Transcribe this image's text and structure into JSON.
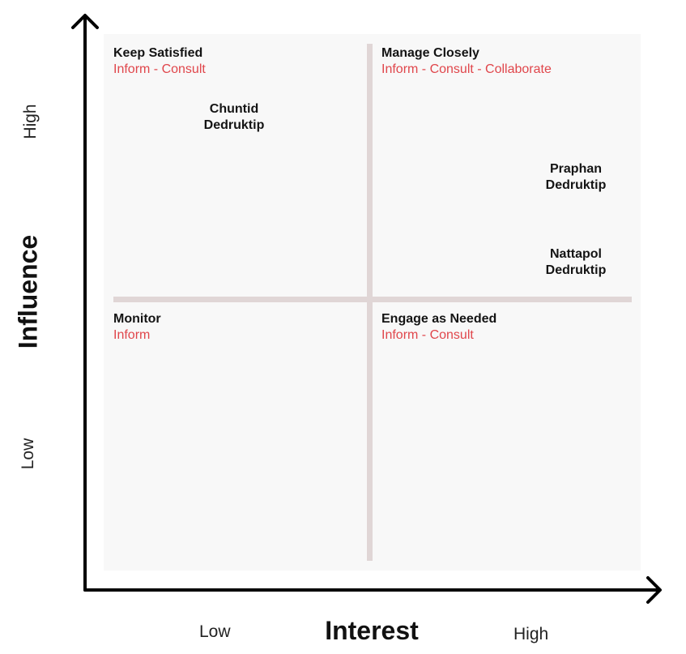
{
  "quadrants": {
    "top_left": {
      "title": "Keep Satisfied",
      "actions": "Inform - Consult"
    },
    "top_right": {
      "title": "Manage Closely",
      "actions": "Inform - Consult - Collaborate"
    },
    "bottom_left": {
      "title": "Monitor",
      "actions": "Inform"
    },
    "bottom_right": {
      "title": "Engage as Needed",
      "actions": "Inform - Consult"
    }
  },
  "stakeholders": [
    {
      "first": "Chuntid",
      "last": "Dedruktip"
    },
    {
      "first": "Praphan",
      "last": "Dedruktip"
    },
    {
      "first": "Nattapol",
      "last": "Dedruktip"
    }
  ],
  "axes": {
    "x": {
      "title": "Interest",
      "low": "Low",
      "high": "High"
    },
    "y": {
      "title": "Influence",
      "low": "Low",
      "high": "High"
    }
  }
}
